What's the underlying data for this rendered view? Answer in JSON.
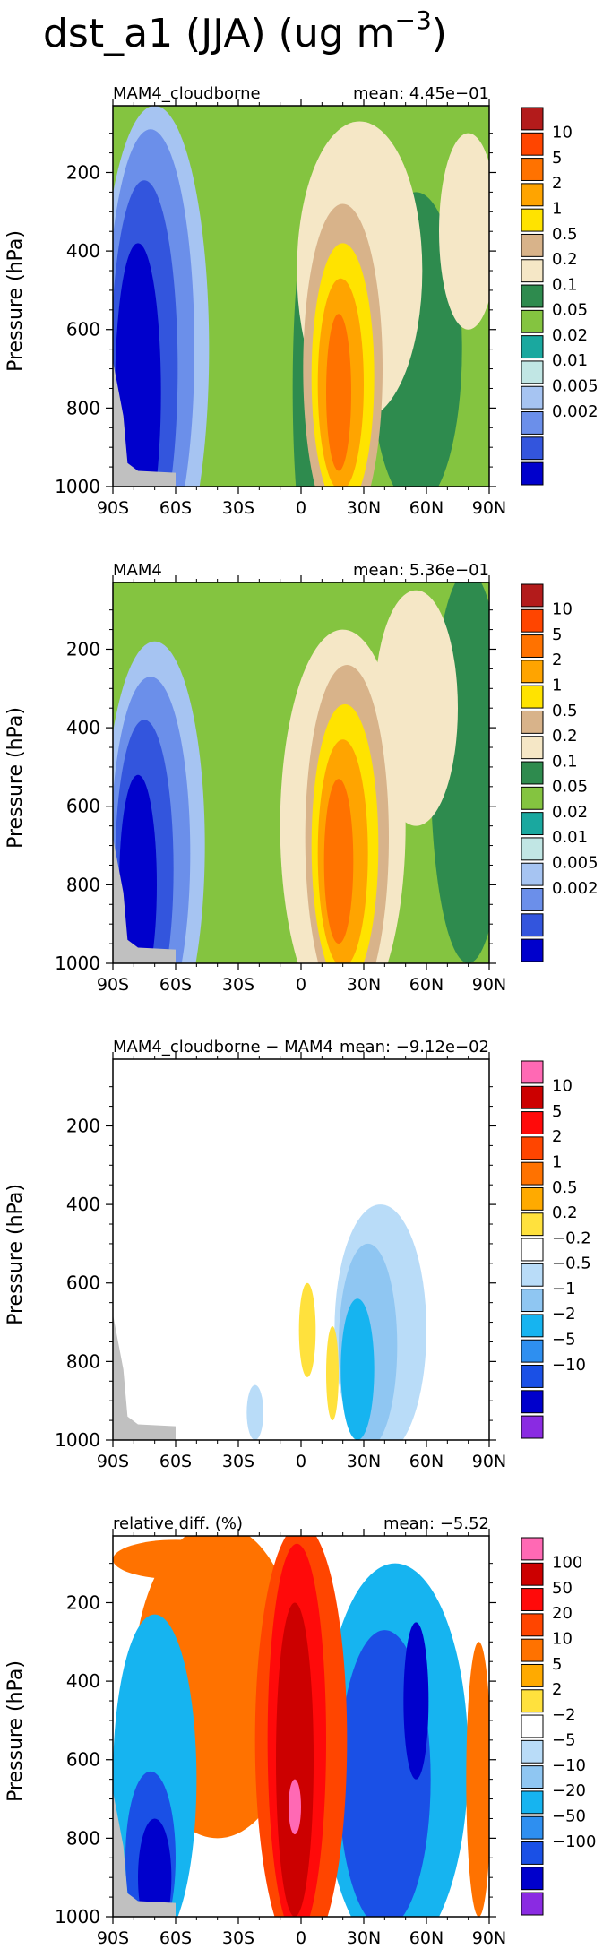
{
  "figure": {
    "title_main": "dst_a1 (JJA) (ug m",
    "title_exp": "−3",
    "title_close": ")"
  },
  "chart_data": [
    {
      "type": "heatmap",
      "left_title": "MAM4_cloudborne",
      "right_title": "mean: 4.45e−01",
      "xlabel": "",
      "ylabel": "Pressure (hPa)",
      "x_ticks": [
        "90S",
        "60S",
        "30S",
        "0",
        "30N",
        "60N",
        "90N"
      ],
      "x_range": [
        -90,
        90
      ],
      "y_ticks": [
        "200",
        "400",
        "600",
        "800",
        "1000"
      ],
      "y_range": [
        1000,
        30
      ],
      "colorbar_labels": [
        "10",
        "5",
        "2",
        "1",
        "0.5",
        "0.2",
        "0.1",
        "0.05",
        "0.02",
        "0.01",
        "0.005",
        "0.002"
      ],
      "colors": [
        "#0000cc",
        "#3355dd",
        "#6b8fea",
        "#a6c4f2",
        "#c1e6e4",
        "#1aa89f",
        "#84c440",
        "#2e8b4e",
        "#f5e7c6",
        "#d8b38a",
        "#ffe300",
        "#ffa400",
        "#ff7200",
        "#ff4500",
        "#b31b1b"
      ],
      "features": [
        {
          "level": 3,
          "lat": -70,
          "p": 650,
          "dlat": 26,
          "dp": 620
        },
        {
          "level": 2,
          "lat": -72,
          "p": 650,
          "dlat": 21,
          "dp": 560
        },
        {
          "level": 1,
          "lat": -75,
          "p": 700,
          "dlat": 16,
          "dp": 480
        },
        {
          "level": 0,
          "lat": -78,
          "p": 760,
          "dlat": 11,
          "dp": 380
        },
        {
          "level": 7,
          "lat": 5,
          "p": 750,
          "dlat": 9,
          "dp": 450
        },
        {
          "level": 7,
          "lat": 55,
          "p": 650,
          "dlat": 22,
          "dp": 400
        },
        {
          "level": 8,
          "lat": 28,
          "p": 450,
          "dlat": 30,
          "dp": 380
        },
        {
          "level": 8,
          "lat": 80,
          "p": 350,
          "dlat": 14,
          "dp": 250
        },
        {
          "level": 9,
          "lat": 20,
          "p": 700,
          "dlat": 19,
          "dp": 420
        },
        {
          "level": 10,
          "lat": 20,
          "p": 720,
          "dlat": 15,
          "dp": 340
        },
        {
          "level": 11,
          "lat": 19,
          "p": 740,
          "dlat": 11,
          "dp": 270
        },
        {
          "level": 12,
          "lat": 18,
          "p": 760,
          "dlat": 6,
          "dp": 200
        }
      ]
    },
    {
      "type": "heatmap",
      "left_title": "MAM4",
      "right_title": "mean: 5.36e−01",
      "xlabel": "",
      "ylabel": "Pressure (hPa)",
      "x_ticks": [
        "90S",
        "60S",
        "30S",
        "0",
        "30N",
        "60N",
        "90N"
      ],
      "x_range": [
        -90,
        90
      ],
      "y_ticks": [
        "200",
        "400",
        "600",
        "800",
        "1000"
      ],
      "y_range": [
        1000,
        30
      ],
      "colorbar_labels": [
        "10",
        "5",
        "2",
        "1",
        "0.5",
        "0.2",
        "0.1",
        "0.05",
        "0.02",
        "0.01",
        "0.005",
        "0.002"
      ],
      "colors": [
        "#0000cc",
        "#3355dd",
        "#6b8fea",
        "#a6c4f2",
        "#c1e6e4",
        "#1aa89f",
        "#84c440",
        "#2e8b4e",
        "#f5e7c6",
        "#d8b38a",
        "#ffe300",
        "#ffa400",
        "#ff7200",
        "#ff4500",
        "#b31b1b"
      ],
      "features": [
        {
          "level": 3,
          "lat": -70,
          "p": 700,
          "dlat": 24,
          "dp": 520
        },
        {
          "level": 2,
          "lat": -72,
          "p": 720,
          "dlat": 19,
          "dp": 450
        },
        {
          "level": 1,
          "lat": -75,
          "p": 760,
          "dlat": 14,
          "dp": 380
        },
        {
          "level": 0,
          "lat": -78,
          "p": 800,
          "dlat": 9,
          "dp": 280
        },
        {
          "level": 7,
          "lat": 80,
          "p": 500,
          "dlat": 18,
          "dp": 500
        },
        {
          "level": 8,
          "lat": 20,
          "p": 650,
          "dlat": 30,
          "dp": 500
        },
        {
          "level": 8,
          "lat": 55,
          "p": 350,
          "dlat": 20,
          "dp": 300
        },
        {
          "level": 9,
          "lat": 22,
          "p": 680,
          "dlat": 20,
          "dp": 440
        },
        {
          "level": 10,
          "lat": 21,
          "p": 700,
          "dlat": 16,
          "dp": 360
        },
        {
          "level": 11,
          "lat": 20,
          "p": 720,
          "dlat": 12,
          "dp": 290
        },
        {
          "level": 12,
          "lat": 18,
          "p": 740,
          "dlat": 7,
          "dp": 210
        }
      ]
    },
    {
      "type": "heatmap",
      "left_title": "MAM4_cloudborne − MAM4",
      "right_title": "mean: −9.12e−02",
      "xlabel": "",
      "ylabel": "Pressure (hPa)",
      "x_ticks": [
        "90S",
        "60S",
        "30S",
        "0",
        "30N",
        "60N",
        "90N"
      ],
      "x_range": [
        -90,
        90
      ],
      "y_ticks": [
        "200",
        "400",
        "600",
        "800",
        "1000"
      ],
      "y_range": [
        1000,
        30
      ],
      "colorbar_labels": [
        "10",
        "5",
        "2",
        "1",
        "0.5",
        "0.2",
        "−0.2",
        "−0.5",
        "−1",
        "−2",
        "−5",
        "−10"
      ],
      "colors": [
        "#8a2be2",
        "#0000cc",
        "#1a50e6",
        "#2e8ff0",
        "#16b4f0",
        "#8fc6f2",
        "#b9dcf8",
        "#ffffff",
        "#ffe13d",
        "#ffaa00",
        "#ff7200",
        "#ff4500",
        "#ff0a0a",
        "#cc0000",
        "#ff69b4"
      ],
      "features": [
        {
          "level": 6,
          "lat": 38,
          "p": 720,
          "dlat": 22,
          "dp": 320
        },
        {
          "level": 5,
          "lat": 32,
          "p": 760,
          "dlat": 14,
          "dp": 260
        },
        {
          "level": 4,
          "lat": 27,
          "p": 820,
          "dlat": 8,
          "dp": 180
        },
        {
          "level": 8,
          "lat": 3,
          "p": 720,
          "dlat": 4,
          "dp": 120
        },
        {
          "level": 8,
          "lat": 15,
          "p": 830,
          "dlat": 3,
          "dp": 120
        },
        {
          "level": 6,
          "lat": -22,
          "p": 930,
          "dlat": 4,
          "dp": 70
        }
      ]
    },
    {
      "type": "heatmap",
      "left_title": "relative diff. (%)",
      "right_title": "mean: −5.52",
      "xlabel": "",
      "ylabel": "Pressure (hPa)",
      "x_ticks": [
        "90S",
        "60S",
        "30S",
        "0",
        "30N",
        "60N",
        "90N"
      ],
      "x_range": [
        -90,
        90
      ],
      "y_ticks": [
        "200",
        "400",
        "600",
        "800",
        "1000"
      ],
      "y_range": [
        1000,
        30
      ],
      "colorbar_labels": [
        "100",
        "50",
        "20",
        "10",
        "5",
        "2",
        "−2",
        "−5",
        "−10",
        "−20",
        "−50",
        "−100"
      ],
      "colors": [
        "#8a2be2",
        "#0000cc",
        "#1a50e6",
        "#2e8ff0",
        "#16b4f0",
        "#8fc6f2",
        "#b9dcf8",
        "#ffffff",
        "#ffe13d",
        "#ffaa00",
        "#ff7200",
        "#ff4500",
        "#ff0a0a",
        "#cc0000",
        "#ff69b4"
      ],
      "features": [
        {
          "level": 10,
          "lat": -40,
          "p": 400,
          "dlat": 40,
          "dp": 400
        },
        {
          "level": 4,
          "lat": -70,
          "p": 650,
          "dlat": 20,
          "dp": 420
        },
        {
          "level": 2,
          "lat": -72,
          "p": 850,
          "dlat": 12,
          "dp": 220
        },
        {
          "level": 1,
          "lat": -70,
          "p": 900,
          "dlat": 8,
          "dp": 150
        },
        {
          "level": 4,
          "lat": 45,
          "p": 600,
          "dlat": 35,
          "dp": 500
        },
        {
          "level": 2,
          "lat": 40,
          "p": 650,
          "dlat": 22,
          "dp": 380
        },
        {
          "level": 1,
          "lat": 55,
          "p": 450,
          "dlat": 6,
          "dp": 200
        },
        {
          "level": 11,
          "lat": 0,
          "p": 550,
          "dlat": 22,
          "dp": 550
        },
        {
          "level": 12,
          "lat": -2,
          "p": 550,
          "dlat": 14,
          "dp": 500
        },
        {
          "level": 13,
          "lat": -3,
          "p": 600,
          "dlat": 9,
          "dp": 400
        },
        {
          "level": 14,
          "lat": -3,
          "p": 720,
          "dlat": 3,
          "dp": 70
        },
        {
          "level": 10,
          "lat": 85,
          "p": 650,
          "dlat": 6,
          "dp": 350
        },
        {
          "level": 10,
          "lat": -60,
          "p": 90,
          "dlat": 30,
          "dp": 50
        }
      ]
    }
  ]
}
